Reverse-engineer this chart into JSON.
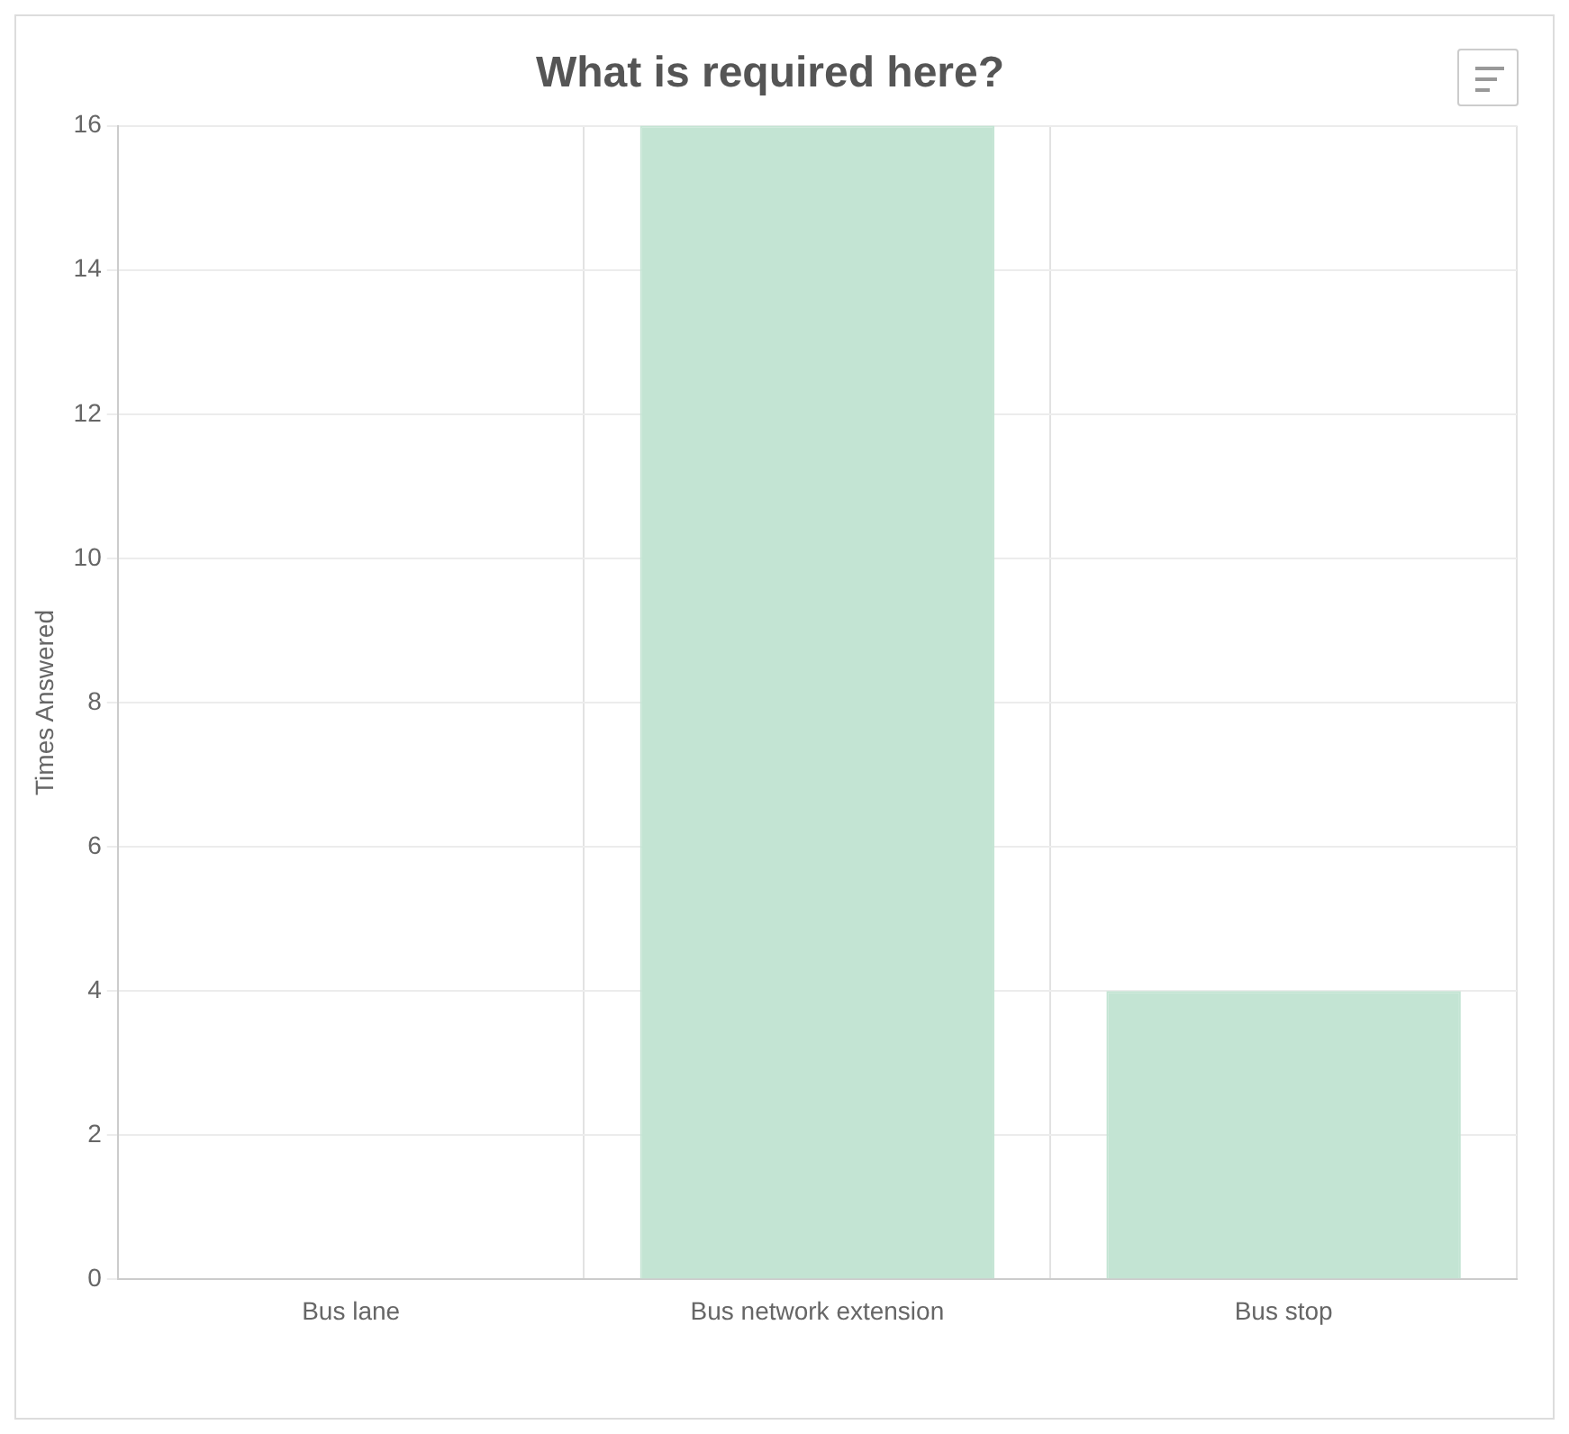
{
  "chart_data": {
    "type": "bar",
    "title": "What is required here?",
    "ylabel": "Times Answered",
    "categories": [
      "Bus lane",
      "Bus network extension",
      "Bus stop"
    ],
    "values": [
      0,
      16,
      4
    ],
    "color": "#c3e4d3",
    "ylim": [
      0,
      16
    ],
    "yticks": [
      0,
      2,
      4,
      6,
      8,
      10,
      12,
      14,
      16
    ],
    "grid": true
  }
}
